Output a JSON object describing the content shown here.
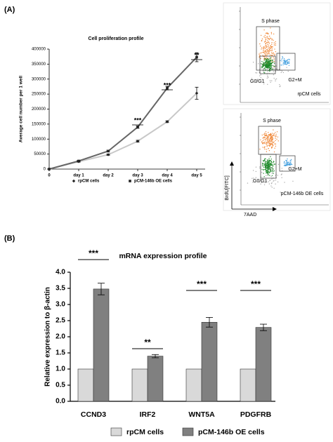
{
  "panel_labels": [
    "(A)",
    "(B)"
  ],
  "chart_data": [
    {
      "type": "line",
      "title": "Cell proliferation profile",
      "y_label": "Average cell number per 1 well",
      "categories": [
        "0",
        "day 1",
        "day 2",
        "day 3",
        "day 4",
        "day 5"
      ],
      "series": [
        {
          "name": "rpCM cells",
          "color": "#c8c8c8",
          "marker": "diamond",
          "values": [
            0,
            25000,
            48000,
            93000,
            158000,
            253000
          ],
          "errors": [
            0,
            2000,
            2000,
            3000,
            3000,
            20000
          ]
        },
        {
          "name": "pCM-146b OE cells",
          "color": "#666666",
          "marker": "square",
          "values": [
            0,
            27000,
            60000,
            140000,
            270000,
            373000
          ],
          "errors": [
            0,
            2000,
            3000,
            4000,
            6000,
            15000
          ]
        }
      ],
      "significance": [
        null,
        null,
        null,
        "***",
        "***",
        "**"
      ],
      "ylim": [
        0,
        400000
      ],
      "yticks": [
        0,
        50000,
        100000,
        150000,
        200000,
        250000,
        300000,
        350000,
        400000
      ]
    },
    {
      "type": "bar",
      "title": "mRNA expression profile",
      "y_label": "Relative expression to β-actin",
      "categories": [
        "CCND3",
        "IRF2",
        "WNT5A",
        "PDGFRB"
      ],
      "series": [
        {
          "name": "rpCM cells",
          "color": "#d9d9d9",
          "values": [
            1,
            1,
            1,
            1
          ]
        },
        {
          "name": "pCM-146b OE cells",
          "color": "#808080",
          "values": [
            3.48,
            1.4,
            2.45,
            2.29
          ],
          "errors": [
            0.18,
            0.05,
            0.15,
            0.1
          ]
        }
      ],
      "significance": [
        "***",
        "**",
        "***",
        "***"
      ],
      "ylim": [
        0,
        4
      ],
      "yticks": [
        {
          "value": 0,
          "label": "0.0"
        },
        {
          "value": 0.5,
          "label": "0.5"
        },
        {
          "value": 1,
          "label": "1.0"
        },
        {
          "value": 1.5,
          "label": "1.5"
        },
        {
          "value": 2,
          "label": "2.0"
        },
        {
          "value": 2.5,
          "label": "2.5"
        },
        {
          "value": 3,
          "label": "3.0"
        },
        {
          "value": 3.5,
          "label": "3.5"
        },
        {
          "value": 4,
          "label": "4.0"
        }
      ]
    }
  ],
  "flow_panels": [
    {
      "gates": [
        "S phase",
        "G0/G1",
        "G2+M"
      ],
      "sample": "rpCM cells"
    },
    {
      "gates": [
        "S phase",
        "G0/G1",
        "G2+M"
      ],
      "sample": "pCM-146b OE cells"
    }
  ],
  "flow_axes": {
    "y_label": "BrdU[FITC]",
    "x_label": "7AAD"
  }
}
